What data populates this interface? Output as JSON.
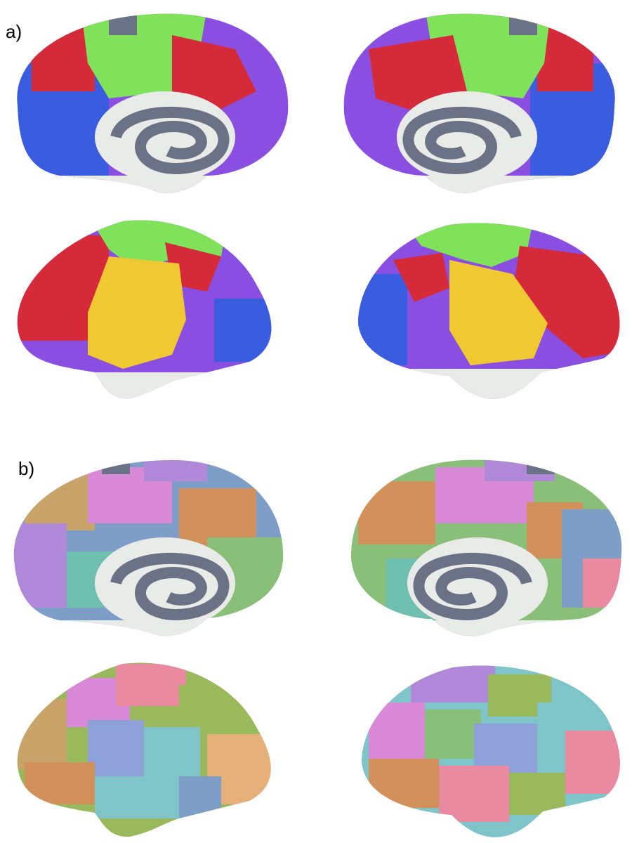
{
  "panel_a": {
    "label": "a)",
    "views": [
      "left-medial",
      "right-medial",
      "left-lateral",
      "right-lateral"
    ],
    "palette": {
      "blue": "#3a5de0",
      "red": "#d42a3a",
      "green": "#7fe25a",
      "purple": "#8a4fe0",
      "yellow": "#f0c832",
      "gray": "#6b7285",
      "white": "#e8ebe8"
    }
  },
  "panel_b": {
    "label": "b)",
    "views": [
      "left-medial",
      "right-medial",
      "left-lateral",
      "right-lateral"
    ],
    "palette": [
      "#c9a46a",
      "#d98ad6",
      "#b08ad8",
      "#7e9ec8",
      "#d2915a",
      "#8abf7a",
      "#6fbfb0",
      "#e98aa0",
      "#9ab85c",
      "#8fa0d8",
      "#7ec4c8",
      "#e6b07a"
    ],
    "medial_fill": "#e8ebe8",
    "gray": "#6b7285"
  }
}
